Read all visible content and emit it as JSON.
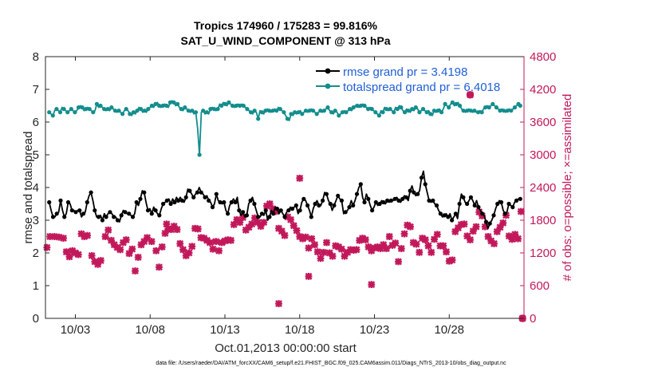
{
  "chart_data": {
    "type": "line",
    "title": "Tropics 174960 / 175283 = 99.816%",
    "subtitle": "SAT_U_WIND_COMPONENT @ 313 hPa",
    "xlabel": "Oct.01,2013 00:00:00 start",
    "ylabel": "rmse and totalspread",
    "ylabel_right": "# of obs: o=possible; ×=assimilated",
    "footer": "data file: /Users/raeder/DAI/ATM_forcXX/CAM6_setup/f.e21.FHIST_BGC.f09_025.CAM6assim.011/Diags_NTrS_2013-10/obs_diag_output.nc",
    "x_ticks": [
      "10/03",
      "10/08",
      "10/13",
      "10/18",
      "10/23",
      "10/28"
    ],
    "x_tick_days": [
      3,
      8,
      13,
      18,
      23,
      28
    ],
    "xlim": [
      1.0,
      33.0
    ],
    "ylim": [
      0,
      8
    ],
    "ylim_right": [
      0,
      4800
    ],
    "y_ticks": [
      "0",
      "1",
      "2",
      "3",
      "4",
      "5",
      "6",
      "7",
      "8"
    ],
    "y_ticks_right": [
      "0",
      "600",
      "1200",
      "1800",
      "2400",
      "3000",
      "3600",
      "4200",
      "4800"
    ],
    "legend_position": "top-right",
    "series": [
      {
        "name": "rmse grand pr = 3.4198",
        "color": "#000000",
        "marker": "circle",
        "axis": "left",
        "values": [
          3.55,
          3.3,
          3.1,
          3.1,
          3.2,
          3.25,
          3.6,
          3.3,
          3.1,
          3.2,
          3.55,
          3.5,
          3.3,
          3.3,
          3.25,
          3.3,
          3.3,
          3.1,
          3.2,
          3.25,
          3.55,
          3.75,
          3.85,
          3.6,
          3.3,
          3.1,
          3.1,
          3.15,
          3.0,
          3.2,
          3.1,
          3.2,
          3.25,
          3.2,
          3.1,
          3.1,
          3.0,
          2.95,
          3.15,
          3.3,
          3.25,
          3.2,
          3.2,
          3.15,
          3.1,
          3.2,
          3.55,
          3.45,
          3.65,
          3.9,
          3.85,
          3.55,
          3.3,
          3.35,
          3.2,
          3.4,
          3.3,
          3.2,
          3.15,
          3.35,
          3.5,
          3.55,
          3.6,
          3.65,
          3.5,
          3.65,
          3.55,
          3.7,
          3.6,
          3.7,
          3.6,
          3.55,
          3.7,
          3.95,
          3.9,
          3.8,
          3.7,
          3.8,
          3.85,
          4.0,
          3.85,
          3.8,
          3.7,
          3.75,
          3.6,
          3.55,
          3.4,
          3.5,
          3.8,
          3.6,
          3.55,
          3.5,
          3.55,
          3.3,
          3.2,
          3.45,
          3.55,
          3.65,
          3.55,
          3.7,
          3.3,
          3.15,
          3.25,
          3.1,
          3.15,
          3.5,
          3.6,
          3.7,
          3.5,
          3.3,
          3.1,
          3.1,
          3.2,
          3.15,
          3.3,
          3.0,
          3.1,
          3.3,
          3.2,
          3.4,
          3.35,
          3.2,
          3.3,
          3.2,
          3.1,
          3.25,
          3.3,
          3.4,
          3.35,
          3.4,
          3.45,
          3.2,
          3.3,
          3.55,
          3.65,
          3.6,
          3.45,
          3.3,
          3.1,
          3.35,
          3.5,
          3.6,
          3.45,
          3.45,
          3.6,
          3.85,
          3.8,
          3.6,
          3.5,
          3.3,
          3.45,
          3.6,
          3.75,
          3.65,
          3.6,
          3.2,
          3.25,
          3.3,
          3.4,
          3.6,
          3.45,
          3.6,
          3.8,
          4.0,
          4.1,
          3.7,
          3.55,
          3.8,
          3.65,
          3.45,
          3.3,
          3.4,
          3.55,
          3.45,
          3.5,
          3.6,
          3.55,
          3.5,
          3.6,
          3.55,
          3.6,
          3.6,
          3.65,
          3.7,
          3.6,
          3.55,
          3.65,
          3.75,
          3.7,
          3.6,
          3.9,
          4.05,
          3.85,
          3.75,
          3.8,
          3.9,
          4.3,
          4.5,
          4.1,
          3.85,
          3.6,
          3.55,
          3.6,
          3.5,
          3.45,
          3.3,
          3.2,
          3.1,
          3.15,
          3.2,
          3.1,
          3.2,
          3.0,
          3.1,
          3.2,
          3.05,
          3.5,
          3.8,
          3.7,
          3.55,
          3.5,
          3.6,
          3.7,
          3.6,
          3.45,
          3.6,
          3.4,
          3.3,
          3.2,
          3.15,
          2.95,
          2.75,
          2.9,
          3.0,
          3.15,
          3.35,
          3.5,
          3.6,
          3.55,
          3.3,
          3.2,
          3.25,
          3.5,
          3.45,
          3.4,
          3.55,
          3.6,
          3.65,
          3.65
        ]
      },
      {
        "name": "totalspread grand pr = 6.4018",
        "color": "#138d8d",
        "marker": "circle",
        "axis": "left",
        "values": [
          6.3,
          6.25,
          6.2,
          6.35,
          6.4,
          6.35,
          6.3,
          6.45,
          6.4,
          6.35,
          6.3,
          6.35,
          6.4,
          6.35,
          6.3,
          6.35,
          6.45,
          6.5,
          6.45,
          6.35,
          6.4,
          6.45,
          6.4,
          6.35,
          6.3,
          6.35,
          6.55,
          6.45,
          6.5,
          6.45,
          6.4,
          6.35,
          6.4,
          6.35,
          6.45,
          6.4,
          6.35,
          6.3,
          6.35,
          6.3,
          6.25,
          6.35,
          6.4,
          6.35,
          6.25,
          6.2,
          6.3,
          6.25,
          6.35,
          6.45,
          6.4,
          6.3,
          6.35,
          6.3,
          6.4,
          6.45,
          6.5,
          6.45,
          6.55,
          6.6,
          6.5,
          6.45,
          6.5,
          6.55,
          6.5,
          6.45,
          6.6,
          6.65,
          6.6,
          6.5,
          6.55,
          6.45,
          6.4,
          6.35,
          6.45,
          6.4,
          6.35,
          6.3,
          6.35,
          6.25,
          6.3,
          5.8,
          5.0,
          6.3,
          6.35,
          6.25,
          6.3,
          6.25,
          6.4,
          6.45,
          6.4,
          6.35,
          6.4,
          6.55,
          6.5,
          6.6,
          6.55,
          6.5,
          6.6,
          6.55,
          6.5,
          6.45,
          6.5,
          6.55,
          6.5,
          6.55,
          6.5,
          6.45,
          6.4,
          6.35,
          6.3,
          6.25,
          6.35,
          6.3,
          6.1,
          6.35,
          6.3,
          6.25,
          6.35,
          6.4,
          6.35,
          6.3,
          6.35,
          6.4,
          6.35,
          6.45,
          6.4,
          6.35,
          6.3,
          6.2,
          6.1,
          6.05,
          6.25,
          6.2,
          6.3,
          6.25,
          6.3,
          6.35,
          6.25,
          6.3,
          6.35,
          6.3,
          6.35,
          6.4,
          6.35,
          6.3,
          6.25,
          6.3,
          6.35,
          6.3,
          6.35,
          6.4,
          6.45,
          6.35,
          6.3,
          6.25,
          6.35,
          6.3,
          6.2,
          6.25,
          6.3,
          6.35,
          6.3,
          6.35,
          6.4,
          6.35,
          6.45,
          6.5,
          6.5,
          6.45,
          6.5,
          6.55,
          6.5,
          6.45,
          6.4,
          6.45,
          6.4,
          6.35,
          6.3,
          6.25,
          6.2,
          6.35,
          6.3,
          6.45,
          6.4,
          6.35,
          6.4,
          6.35,
          6.3,
          6.45,
          6.4,
          6.5,
          6.45,
          6.35,
          6.3,
          6.4,
          6.35,
          6.3,
          6.4,
          6.35,
          6.45,
          6.4,
          6.3,
          6.35,
          6.4,
          6.35,
          6.3,
          6.35,
          6.25,
          6.2,
          6.35,
          6.3,
          6.35,
          6.4,
          6.3,
          6.4,
          6.55,
          6.5,
          6.45,
          6.55,
          6.6,
          6.5,
          6.55,
          6.6,
          6.5,
          6.4,
          6.35,
          6.3,
          6.35,
          6.4,
          6.35,
          6.3,
          6.35,
          6.3,
          6.3,
          6.35,
          6.3,
          6.4,
          6.45,
          6.5,
          6.45,
          6.5,
          6.55,
          6.5,
          6.45,
          6.4,
          6.35,
          6.4,
          6.35,
          6.3,
          6.35,
          6.4,
          6.35,
          6.4,
          6.45,
          6.5,
          6.55,
          6.5
        ]
      },
      {
        "name": "obs possible",
        "color": "#c2185b",
        "marker": "circle",
        "axis": "right",
        "points": [
          [
            29.4,
            4100
          ],
          [
            32.9,
            0
          ]
        ]
      },
      {
        "name": "obs assimilated",
        "color": "#c2185b",
        "marker": "x",
        "axis": "right",
        "points": [
          [
            1.1,
            1300
          ],
          [
            1.3,
            1500
          ],
          [
            1.6,
            1500
          ],
          [
            1.9,
            1490
          ],
          [
            2.2,
            1470
          ],
          [
            2.4,
            1220
          ],
          [
            2.6,
            1130
          ],
          [
            2.8,
            1240
          ],
          [
            3.0,
            1200
          ],
          [
            3.2,
            1170
          ],
          [
            3.4,
            1550
          ],
          [
            3.6,
            1500
          ],
          [
            3.8,
            1520
          ],
          [
            4.1,
            1150
          ],
          [
            4.3,
            1040
          ],
          [
            4.5,
            990
          ],
          [
            4.7,
            1060
          ],
          [
            5.0,
            1500
          ],
          [
            5.2,
            1620
          ],
          [
            5.4,
            1430
          ],
          [
            5.6,
            1350
          ],
          [
            5.8,
            1300
          ],
          [
            6.0,
            1260
          ],
          [
            6.2,
            1390
          ],
          [
            6.4,
            1440
          ],
          [
            6.6,
            1190
          ],
          [
            6.8,
            1270
          ],
          [
            7.0,
            870
          ],
          [
            7.2,
            1120
          ],
          [
            7.4,
            1350
          ],
          [
            7.6,
            1410
          ],
          [
            7.8,
            1480
          ],
          [
            8.1,
            1410
          ],
          [
            8.4,
            1240
          ],
          [
            8.6,
            940
          ],
          [
            8.8,
            1310
          ],
          [
            9.0,
            1560
          ],
          [
            9.2,
            1640
          ],
          [
            9.4,
            1630
          ],
          [
            9.6,
            1690
          ],
          [
            9.8,
            1630
          ],
          [
            10.0,
            1370
          ],
          [
            10.2,
            1260
          ],
          [
            10.4,
            1150
          ],
          [
            10.6,
            1200
          ],
          [
            10.8,
            1320
          ],
          [
            11.0,
            1650
          ],
          [
            11.2,
            1640
          ],
          [
            11.4,
            1480
          ],
          [
            11.6,
            1470
          ],
          [
            11.8,
            1430
          ],
          [
            12.0,
            1390
          ],
          [
            12.2,
            1270
          ],
          [
            12.4,
            1410
          ],
          [
            12.6,
            1240
          ],
          [
            12.8,
            1390
          ],
          [
            13.0,
            1420
          ],
          [
            13.2,
            1440
          ],
          [
            13.4,
            1430
          ],
          [
            13.6,
            1720
          ],
          [
            13.8,
            1810
          ],
          [
            14.0,
            1760
          ],
          [
            14.2,
            1850
          ],
          [
            14.4,
            1620
          ],
          [
            14.6,
            1670
          ],
          [
            14.8,
            1730
          ],
          [
            15.0,
            1840
          ],
          [
            15.2,
            1760
          ],
          [
            15.4,
            1690
          ],
          [
            15.6,
            1760
          ],
          [
            15.8,
            2060
          ],
          [
            16.0,
            2100
          ],
          [
            16.2,
            2010
          ],
          [
            16.4,
            1960
          ],
          [
            16.6,
            1650
          ],
          [
            16.8,
            1600
          ],
          [
            17.0,
            1520
          ],
          [
            17.2,
            1860
          ],
          [
            17.4,
            1810
          ],
          [
            17.6,
            1700
          ],
          [
            17.8,
            1610
          ],
          [
            18.0,
            1500
          ],
          [
            18.2,
            1460
          ],
          [
            18.4,
            1490
          ],
          [
            18.6,
            1290
          ],
          [
            18.8,
            1460
          ],
          [
            19.0,
            1350
          ],
          [
            19.2,
            1220
          ],
          [
            19.4,
            1100
          ],
          [
            19.6,
            1210
          ],
          [
            19.8,
            1390
          ],
          [
            20.0,
            1200
          ],
          [
            20.2,
            1140
          ],
          [
            20.4,
            1330
          ],
          [
            20.6,
            1310
          ],
          [
            20.8,
            1270
          ],
          [
            21.0,
            1140
          ],
          [
            21.2,
            1210
          ],
          [
            21.4,
            1260
          ],
          [
            21.6,
            1250
          ],
          [
            21.8,
            1260
          ],
          [
            22.0,
            1430
          ],
          [
            22.2,
            1470
          ],
          [
            22.4,
            1440
          ],
          [
            22.6,
            1310
          ],
          [
            22.8,
            1240
          ],
          [
            23.0,
            1290
          ],
          [
            23.2,
            1310
          ],
          [
            23.4,
            1280
          ],
          [
            23.6,
            1350
          ],
          [
            23.8,
            1280
          ],
          [
            24.0,
            1500
          ],
          [
            24.2,
            1340
          ],
          [
            24.4,
            1380
          ],
          [
            24.6,
            1040
          ],
          [
            24.8,
            1280
          ],
          [
            25.0,
            1550
          ],
          [
            25.2,
            1710
          ],
          [
            25.4,
            1680
          ],
          [
            25.6,
            1390
          ],
          [
            25.8,
            1360
          ],
          [
            26.0,
            1210
          ],
          [
            26.2,
            1470
          ],
          [
            26.4,
            1440
          ],
          [
            26.6,
            1330
          ],
          [
            26.8,
            1210
          ],
          [
            27.0,
            1450
          ],
          [
            27.2,
            1540
          ],
          [
            27.4,
            1330
          ],
          [
            27.6,
            1330
          ],
          [
            27.8,
            1220
          ],
          [
            28.0,
            1050
          ],
          [
            28.2,
            1070
          ],
          [
            28.4,
            1590
          ],
          [
            28.6,
            1660
          ],
          [
            28.8,
            1720
          ],
          [
            29.0,
            1730
          ],
          [
            29.2,
            1510
          ],
          [
            29.4,
            1440
          ],
          [
            29.6,
            1600
          ],
          [
            29.8,
            1680
          ],
          [
            30.0,
            1950
          ],
          [
            30.2,
            1880
          ],
          [
            30.4,
            1680
          ],
          [
            30.6,
            1500
          ],
          [
            30.8,
            1420
          ],
          [
            31.0,
            1370
          ],
          [
            31.2,
            1590
          ],
          [
            31.4,
            1670
          ],
          [
            31.6,
            1750
          ],
          [
            31.8,
            1890
          ],
          [
            32.0,
            1510
          ],
          [
            32.2,
            1450
          ],
          [
            32.4,
            1540
          ],
          [
            32.6,
            1460
          ],
          [
            32.8,
            1960
          ]
        ],
        "outliers": [
          [
            16.6,
            270
          ],
          [
            18.0,
            2570
          ],
          [
            18.6,
            770
          ],
          [
            22.8,
            620
          ],
          [
            9.1,
            1730
          ]
        ]
      }
    ]
  }
}
